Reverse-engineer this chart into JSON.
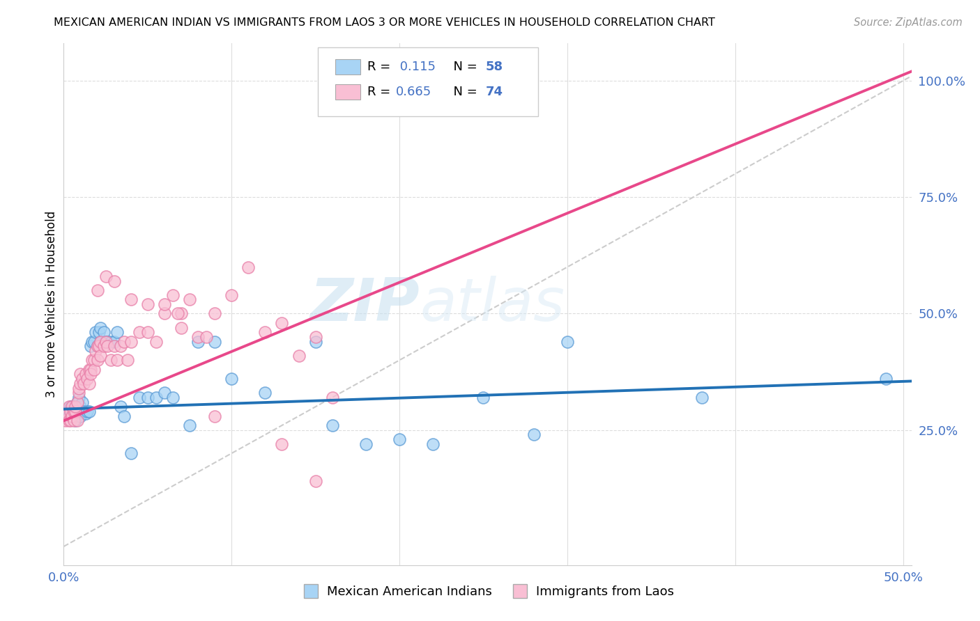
{
  "title": "MEXICAN AMERICAN INDIAN VS IMMIGRANTS FROM LAOS 3 OR MORE VEHICLES IN HOUSEHOLD CORRELATION CHART",
  "source": "Source: ZipAtlas.com",
  "ylabel": "3 or more Vehicles in Household",
  "xlim": [
    0.0,
    0.505
  ],
  "ylim": [
    -0.04,
    1.08
  ],
  "color_blue_fill": "#a8d4f5",
  "color_blue_edge": "#5b9bd5",
  "color_blue_line": "#2171b5",
  "color_pink_fill": "#f9bfd4",
  "color_pink_edge": "#e87fa8",
  "color_pink_line": "#e8488a",
  "r_blue": "0.115",
  "n_blue": "58",
  "r_pink": "0.665",
  "n_pink": "74",
  "blue_trend_x0": 0.0,
  "blue_trend_y0": 0.295,
  "blue_trend_x1": 0.505,
  "blue_trend_y1": 0.355,
  "pink_trend_x0": 0.0,
  "pink_trend_y0": 0.27,
  "pink_trend_x1": 0.505,
  "pink_trend_y1": 1.02,
  "blue_scatter_x": [
    0.002,
    0.003,
    0.004,
    0.004,
    0.005,
    0.005,
    0.006,
    0.006,
    0.007,
    0.007,
    0.008,
    0.008,
    0.009,
    0.009,
    0.01,
    0.01,
    0.011,
    0.012,
    0.013,
    0.014,
    0.015,
    0.016,
    0.017,
    0.018,
    0.019,
    0.02,
    0.021,
    0.022,
    0.022,
    0.024,
    0.025,
    0.026,
    0.028,
    0.03,
    0.032,
    0.034,
    0.036,
    0.04,
    0.045,
    0.05,
    0.055,
    0.06,
    0.065,
    0.075,
    0.08,
    0.09,
    0.1,
    0.12,
    0.15,
    0.16,
    0.18,
    0.2,
    0.22,
    0.25,
    0.28,
    0.3,
    0.38,
    0.49
  ],
  "blue_scatter_y": [
    0.29,
    0.28,
    0.3,
    0.28,
    0.3,
    0.29,
    0.28,
    0.3,
    0.29,
    0.27,
    0.31,
    0.3,
    0.29,
    0.32,
    0.28,
    0.3,
    0.31,
    0.29,
    0.285,
    0.29,
    0.29,
    0.43,
    0.44,
    0.44,
    0.46,
    0.43,
    0.46,
    0.47,
    0.44,
    0.46,
    0.44,
    0.44,
    0.44,
    0.44,
    0.46,
    0.3,
    0.28,
    0.2,
    0.32,
    0.32,
    0.32,
    0.33,
    0.32,
    0.26,
    0.44,
    0.44,
    0.36,
    0.33,
    0.44,
    0.26,
    0.22,
    0.23,
    0.22,
    0.32,
    0.24,
    0.44,
    0.32,
    0.36
  ],
  "pink_scatter_x": [
    0.001,
    0.002,
    0.003,
    0.003,
    0.004,
    0.004,
    0.005,
    0.005,
    0.006,
    0.006,
    0.007,
    0.007,
    0.008,
    0.008,
    0.009,
    0.009,
    0.01,
    0.01,
    0.011,
    0.012,
    0.013,
    0.014,
    0.015,
    0.015,
    0.016,
    0.016,
    0.017,
    0.018,
    0.018,
    0.019,
    0.02,
    0.02,
    0.021,
    0.022,
    0.022,
    0.024,
    0.025,
    0.026,
    0.028,
    0.03,
    0.032,
    0.034,
    0.036,
    0.038,
    0.04,
    0.045,
    0.05,
    0.055,
    0.06,
    0.065,
    0.07,
    0.075,
    0.08,
    0.085,
    0.09,
    0.1,
    0.11,
    0.12,
    0.13,
    0.14,
    0.15,
    0.16,
    0.02,
    0.025,
    0.06,
    0.07,
    0.09,
    0.13,
    0.15,
    0.16,
    0.03,
    0.04,
    0.05,
    0.068
  ],
  "pink_scatter_y": [
    0.27,
    0.285,
    0.27,
    0.3,
    0.27,
    0.29,
    0.28,
    0.3,
    0.27,
    0.29,
    0.29,
    0.3,
    0.27,
    0.31,
    0.33,
    0.34,
    0.35,
    0.37,
    0.36,
    0.35,
    0.37,
    0.36,
    0.38,
    0.35,
    0.38,
    0.37,
    0.4,
    0.4,
    0.38,
    0.42,
    0.4,
    0.43,
    0.43,
    0.41,
    0.44,
    0.43,
    0.44,
    0.43,
    0.4,
    0.43,
    0.4,
    0.43,
    0.44,
    0.4,
    0.44,
    0.46,
    0.46,
    0.44,
    0.5,
    0.54,
    0.47,
    0.53,
    0.45,
    0.45,
    0.5,
    0.54,
    0.6,
    0.46,
    0.48,
    0.41,
    0.45,
    0.32,
    0.55,
    0.58,
    0.52,
    0.5,
    0.28,
    0.22,
    0.14,
    0.96,
    0.57,
    0.53,
    0.52,
    0.5
  ],
  "watermark_zip": "ZIP",
  "watermark_atlas": "atlas",
  "yticks_right": [
    0.25,
    0.5,
    0.75,
    1.0
  ],
  "ytick_labels_right": [
    "25.0%",
    "50.0%",
    "75.0%",
    "100.0%"
  ]
}
